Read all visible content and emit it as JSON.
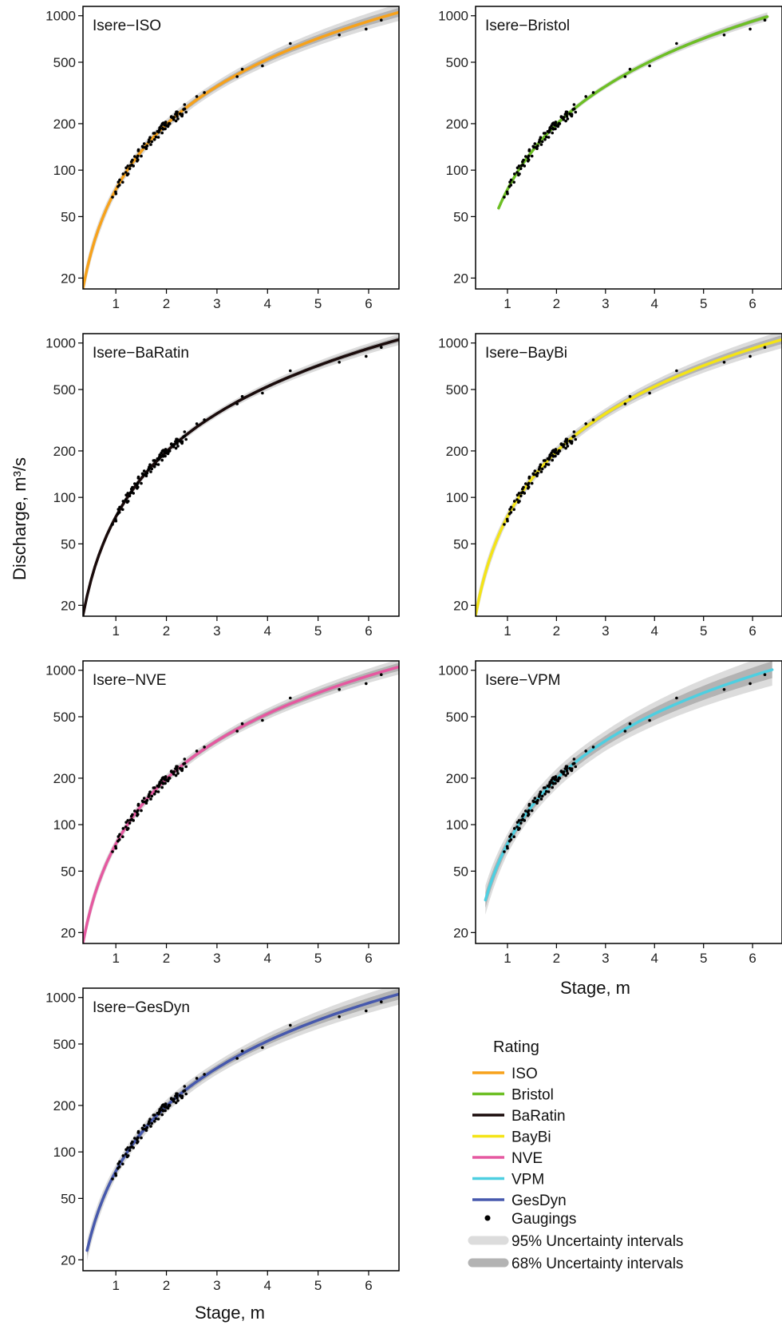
{
  "figure": {
    "y_axis_title": "Discharge, m³/s",
    "x_axis_title_right": "Stage, m",
    "x_axis_title_bottom": "Stage, m"
  },
  "legend": {
    "title": "Rating",
    "gaugings_label": "Gaugings",
    "ci95_label": "95% Uncertainty intervals",
    "ci68_label": "68% Uncertainty intervals",
    "ci95_color": "#dcdcdc",
    "ci68_color": "#b3b3b3"
  },
  "chart_data": [
    {
      "type": "line",
      "title": "Isere−ISO",
      "series": [
        {
          "name": "ISO",
          "color": "#f7a21b"
        }
      ],
      "x_ticks": [
        1,
        2,
        3,
        4,
        5,
        6
      ],
      "y_ticks": [
        20,
        50,
        100,
        200,
        500,
        1000
      ],
      "x_range": [
        0.35,
        6.6
      ],
      "y_range": [
        17,
        1150
      ],
      "y_scale": "log",
      "curve_x_range": [
        0.35,
        6.6
      ],
      "band95_rel": 0.08,
      "band68_rel": 0.04
    },
    {
      "type": "line",
      "title": "Isere−Bristol",
      "series": [
        {
          "name": "Bristol",
          "color": "#6dbf25"
        }
      ],
      "x_ticks": [
        1,
        2,
        3,
        4,
        5,
        6
      ],
      "y_ticks": [
        20,
        50,
        100,
        200,
        500,
        1000
      ],
      "x_range": [
        0.35,
        6.6
      ],
      "y_range": [
        17,
        1150
      ],
      "y_scale": "log",
      "curve_x_range": [
        0.82,
        6.3
      ],
      "band95_rel": 0.04,
      "band68_rel": 0.02
    },
    {
      "type": "line",
      "title": "Isere−BaRatin",
      "series": [
        {
          "name": "BaRatin",
          "color": "#1a0b0b"
        }
      ],
      "x_ticks": [
        1,
        2,
        3,
        4,
        5,
        6
      ],
      "y_ticks": [
        20,
        50,
        100,
        200,
        500,
        1000
      ],
      "x_range": [
        0.35,
        6.6
      ],
      "y_range": [
        17,
        1150
      ],
      "y_scale": "log",
      "curve_x_range": [
        0.35,
        6.6
      ],
      "band95_rel": 0.05,
      "band68_rel": 0.025
    },
    {
      "type": "line",
      "title": "Isere−BayBi",
      "series": [
        {
          "name": "BayBi",
          "color": "#f4e417"
        }
      ],
      "x_ticks": [
        1,
        2,
        3,
        4,
        5,
        6
      ],
      "y_ticks": [
        20,
        50,
        100,
        200,
        500,
        1000
      ],
      "x_range": [
        0.35,
        6.6
      ],
      "y_range": [
        17,
        1150
      ],
      "y_scale": "log",
      "curve_x_range": [
        0.35,
        6.6
      ],
      "band95_rel": 0.08,
      "band68_rel": 0.04
    },
    {
      "type": "line",
      "title": "Isere−NVE",
      "series": [
        {
          "name": "NVE",
          "color": "#e559a0"
        }
      ],
      "x_ticks": [
        1,
        2,
        3,
        4,
        5,
        6
      ],
      "y_ticks": [
        20,
        50,
        100,
        200,
        500,
        1000
      ],
      "x_range": [
        0.35,
        6.6
      ],
      "y_range": [
        17,
        1150
      ],
      "y_scale": "log",
      "curve_x_range": [
        0.35,
        6.6
      ],
      "band95_rel": 0.07,
      "band68_rel": 0.035
    },
    {
      "type": "line",
      "title": "Isere−VPM",
      "series": [
        {
          "name": "VPM",
          "color": "#4ecfe1"
        }
      ],
      "x_ticks": [
        1,
        2,
        3,
        4,
        5,
        6
      ],
      "y_ticks": [
        20,
        50,
        100,
        200,
        500,
        1000
      ],
      "x_range": [
        0.35,
        6.6
      ],
      "y_range": [
        17,
        1150
      ],
      "y_scale": "log",
      "curve_x_range": [
        0.55,
        6.4
      ],
      "band95_rel": 0.16,
      "band68_rel": 0.08
    },
    {
      "type": "line",
      "title": "Isere−GesDyn",
      "series": [
        {
          "name": "GesDyn",
          "color": "#4759ad"
        }
      ],
      "x_ticks": [
        1,
        2,
        3,
        4,
        5,
        6
      ],
      "y_ticks": [
        20,
        50,
        100,
        200,
        500,
        1000
      ],
      "x_range": [
        0.35,
        6.6
      ],
      "y_range": [
        17,
        1150
      ],
      "y_scale": "log",
      "curve_x_range": [
        0.43,
        6.6
      ],
      "band95_rel": 0.1,
      "band68_rel": 0.05
    }
  ]
}
